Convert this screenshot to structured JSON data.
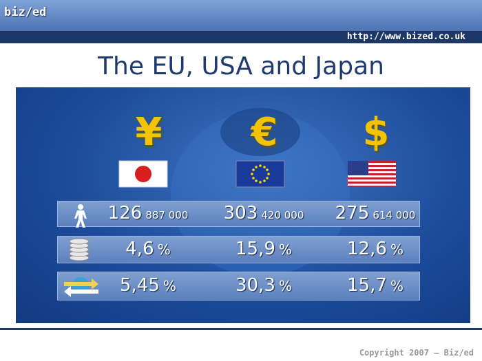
{
  "header": {
    "logo": "biz/ed",
    "url": "http://www.bized.co.uk"
  },
  "title": "The EU, USA and Japan",
  "columns": [
    {
      "symbol": "¥"
    },
    {
      "symbol": "€"
    },
    {
      "symbol": "$"
    }
  ],
  "table": {
    "rows": [
      [
        {
          "main": "126",
          "small": "887 000"
        },
        {
          "main": "303",
          "small": "420 000"
        },
        {
          "main": "275",
          "small": "614 000"
        }
      ],
      [
        {
          "main": "4,6",
          "small": "%"
        },
        {
          "main": "15,9",
          "small": "%"
        },
        {
          "main": "12,6",
          "small": "%"
        }
      ],
      [
        {
          "main": "5,45",
          "small": "%"
        },
        {
          "main": "30,3",
          "small": "%"
        },
        {
          "main": "15,7",
          "small": "%"
        }
      ]
    ]
  },
  "footer": "Copyright 2007 – Biz/ed"
}
